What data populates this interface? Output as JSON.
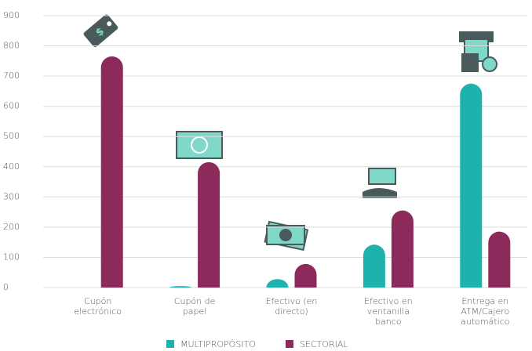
{
  "chart_data": {
    "type": "bar",
    "categories": [
      "Cupón electrónico",
      "Cupón de papel",
      "Efectivo (en directo)",
      "Efectivo en ventanilla banco",
      "Entrega en ATM/Cajero automático"
    ],
    "series": [
      {
        "name": "MULTIPROPÓSITO",
        "color": "#1db3ac",
        "values": [
          0,
          5,
          28,
          142,
          675
        ]
      },
      {
        "name": "SECTORIAL",
        "color": "#8c2a5b",
        "values": [
          765,
          415,
          78,
          255,
          185
        ]
      }
    ],
    "ylim": [
      0,
      900
    ],
    "yticks": [
      0,
      100,
      200,
      300,
      400,
      500,
      600,
      700,
      800,
      900
    ],
    "grid": true,
    "legend": "bottom"
  }
}
